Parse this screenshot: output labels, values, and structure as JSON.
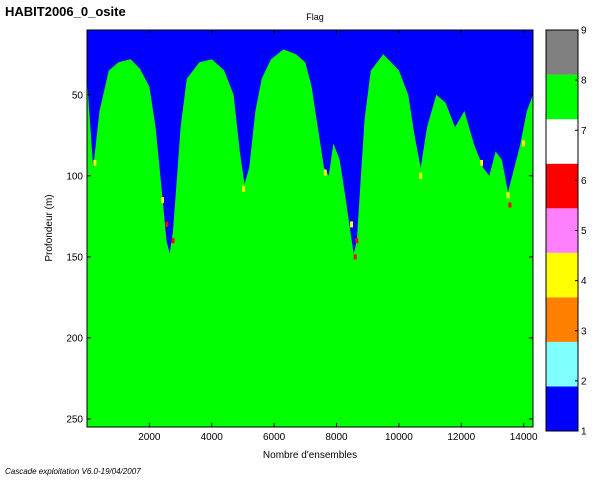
{
  "header": {
    "title": "HABIT2006_0_osite"
  },
  "footer": {
    "text": "Cascade exploitation V6.0-19/04/2007"
  },
  "chart_data": {
    "type": "heatmap",
    "title": "Flag",
    "xlabel": "Nombre d'ensembles",
    "ylabel": "Profondeur (m)",
    "xlim": [
      0,
      14300
    ],
    "ylim": [
      255,
      10
    ],
    "x_ticks": [
      2000,
      4000,
      6000,
      8000,
      10000,
      12000,
      14000
    ],
    "y_ticks": [
      50,
      100,
      150,
      200,
      250
    ],
    "background_flag": 8,
    "colorbar": {
      "ticks": [
        1,
        2,
        3,
        4,
        5,
        6,
        7,
        8,
        9
      ],
      "levels": [
        {
          "value": 1,
          "color": "#0000ff"
        },
        {
          "value": 2,
          "color": "#80ffff"
        },
        {
          "value": 3,
          "color": "#ff8000"
        },
        {
          "value": 4,
          "color": "#ffff00"
        },
        {
          "value": 5,
          "color": "#ff80ff"
        },
        {
          "value": 6,
          "color": "#ff0000"
        },
        {
          "value": 7,
          "color": "#ffffff"
        },
        {
          "value": 8,
          "color": "#00ff00"
        },
        {
          "value": 9,
          "color": "#808080"
        }
      ]
    },
    "flag1_bottom_depth_profile": [
      [
        0,
        40
      ],
      [
        200,
        95
      ],
      [
        400,
        60
      ],
      [
        700,
        35
      ],
      [
        1000,
        30
      ],
      [
        1400,
        28
      ],
      [
        1700,
        34
      ],
      [
        2000,
        45
      ],
      [
        2200,
        70
      ],
      [
        2400,
        110
      ],
      [
        2550,
        140
      ],
      [
        2650,
        148
      ],
      [
        2750,
        135
      ],
      [
        2850,
        110
      ],
      [
        3000,
        70
      ],
      [
        3200,
        40
      ],
      [
        3600,
        30
      ],
      [
        4000,
        28
      ],
      [
        4400,
        35
      ],
      [
        4700,
        50
      ],
      [
        4900,
        85
      ],
      [
        5050,
        105
      ],
      [
        5200,
        95
      ],
      [
        5400,
        60
      ],
      [
        5600,
        40
      ],
      [
        5900,
        28
      ],
      [
        6300,
        22
      ],
      [
        6700,
        25
      ],
      [
        7000,
        30
      ],
      [
        7200,
        45
      ],
      [
        7400,
        70
      ],
      [
        7600,
        95
      ],
      [
        7750,
        100
      ],
      [
        7900,
        80
      ],
      [
        8100,
        90
      ],
      [
        8300,
        115
      ],
      [
        8450,
        135
      ],
      [
        8550,
        148
      ],
      [
        8650,
        140
      ],
      [
        8750,
        110
      ],
      [
        8900,
        65
      ],
      [
        9100,
        35
      ],
      [
        9500,
        25
      ],
      [
        10000,
        35
      ],
      [
        10300,
        50
      ],
      [
        10500,
        75
      ],
      [
        10700,
        95
      ],
      [
        10900,
        70
      ],
      [
        11200,
        50
      ],
      [
        11500,
        55
      ],
      [
        11800,
        70
      ],
      [
        12100,
        60
      ],
      [
        12400,
        80
      ],
      [
        12700,
        95
      ],
      [
        12900,
        100
      ],
      [
        13100,
        85
      ],
      [
        13300,
        90
      ],
      [
        13500,
        110
      ],
      [
        13700,
        95
      ],
      [
        13900,
        80
      ],
      [
        14100,
        60
      ],
      [
        14300,
        50
      ]
    ],
    "flag4_near_bottom_points": [
      [
        250,
        92
      ],
      [
        2420,
        115
      ],
      [
        5020,
        108
      ],
      [
        7640,
        98
      ],
      [
        8480,
        130
      ],
      [
        10700,
        100
      ],
      [
        12650,
        92
      ],
      [
        13500,
        112
      ],
      [
        14000,
        80
      ]
    ],
    "flag6_points": [
      [
        2560,
        130
      ],
      [
        2760,
        140
      ],
      [
        8600,
        150
      ],
      [
        8650,
        140
      ],
      [
        13560,
        118
      ]
    ]
  }
}
